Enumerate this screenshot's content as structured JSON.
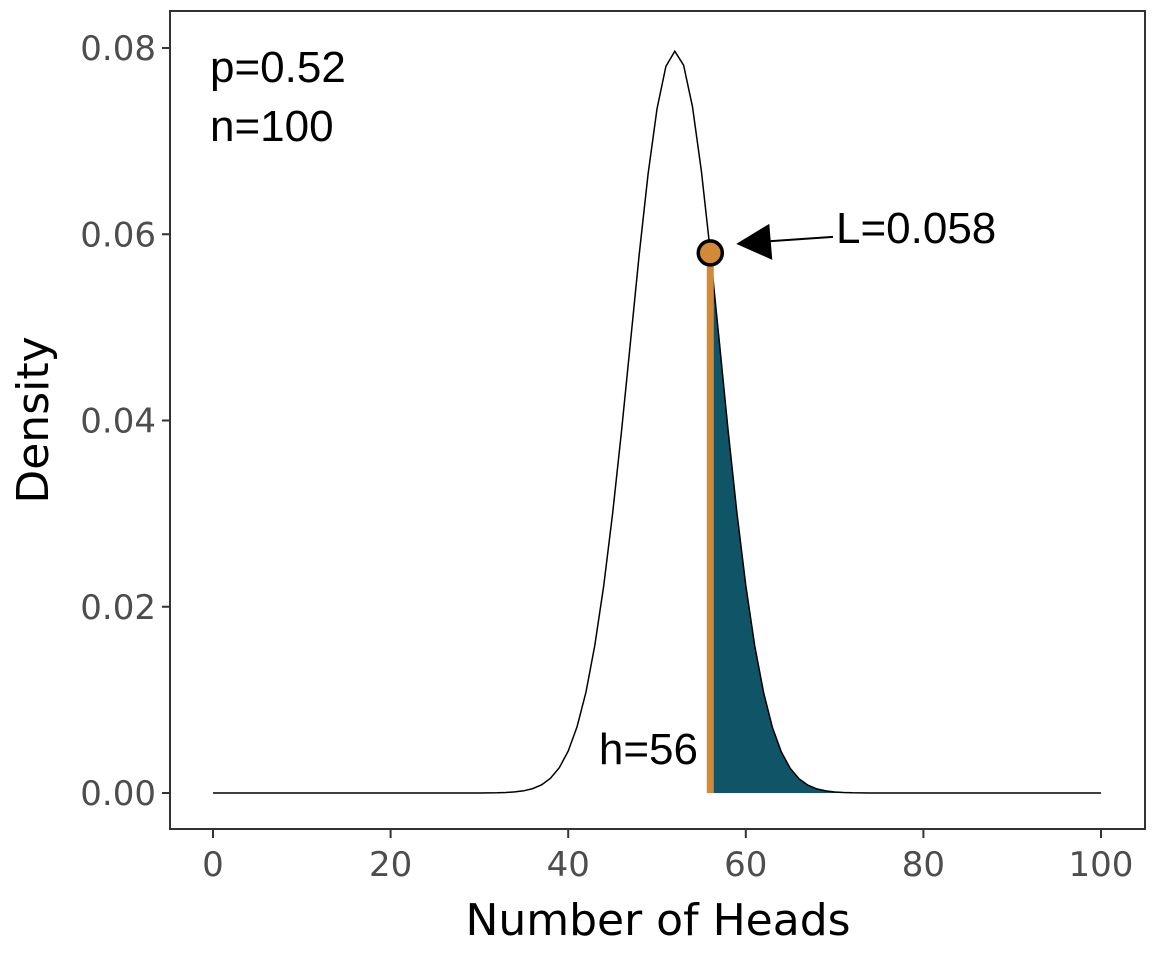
{
  "chart_data": {
    "type": "area",
    "title": "",
    "xlabel": "Number of Heads",
    "ylabel": "Density",
    "xlim": [
      0,
      100
    ],
    "ylim": [
      0,
      0.08
    ],
    "x_ticks": [
      0,
      20,
      40,
      60,
      80,
      100
    ],
    "x_tick_labels": [
      "0",
      "20",
      "40",
      "60",
      "80",
      "100"
    ],
    "y_ticks": [
      0,
      0.02,
      0.04,
      0.06,
      0.08
    ],
    "y_tick_labels": [
      "0.00",
      "0.02",
      "0.04",
      "0.06",
      "0.08"
    ],
    "grid": false,
    "distribution": {
      "name": "binomial",
      "n": 100,
      "p": 0.52
    },
    "observed_h": 56,
    "likelihood": 0.058,
    "shaded_region": [
      56,
      100
    ],
    "annotations": {
      "p_label": "p=0.52",
      "n_label": "n=100",
      "likelihood_label": "L=0.058",
      "h_label": "h=56"
    },
    "colors": {
      "shade": "#0F5467",
      "highlight": "#D38A37",
      "curve": "#000000"
    }
  }
}
